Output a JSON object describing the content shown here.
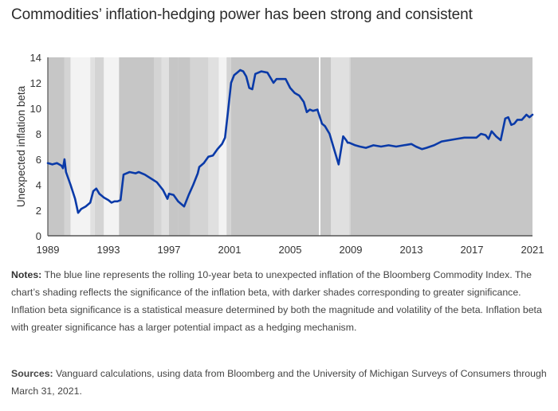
{
  "title": "Commodities’ inflation-hedging power has been strong and consistent",
  "notes_label": "Notes:",
  "notes_text": " The blue line represents the rolling 10-year beta to unexpected inflation of the Bloomberg Commodity Index. The chart’s shading reflects the significance of the inflation beta, with darker shades corresponding to greater significance. Inflation beta significance is a statistical measure determined by both the magnitude and volatility of the beta. Inflation beta with greater significance has a larger potential impact as a hedging mechanism.",
  "sources_label": "Sources:",
  "sources_text": " Vanguard calculations, using data from Bloomberg and the University of Michigan Surveys of Consumers through March 31, 2021.",
  "colors": {
    "line": "#0a3aa8",
    "shade_dark": "#c6c6c6",
    "shade_mid": "#d4d4d4",
    "shade_light": "#e0e0e0",
    "shade_lightest": "#f3f3f3",
    "axis": "#555555"
  },
  "chart_data": {
    "type": "line",
    "title": "Commodities’ inflation-hedging power has been strong and consistent",
    "xlabel": "",
    "ylabel": "Unexpected inflation beta",
    "xlim": [
      1989,
      2021
    ],
    "ylim": [
      0,
      14
    ],
    "x_ticks": [
      "1989",
      "1993",
      "1997",
      "2001",
      "2005",
      "2009",
      "2013",
      "2017",
      "2021"
    ],
    "y_ticks": [
      "0",
      "2",
      "4",
      "6",
      "8",
      "10",
      "12",
      "14"
    ],
    "grid": false,
    "legend": "none",
    "series": [
      {
        "name": "Rolling 10-year inflation beta (Bloomberg Commodity Index)",
        "x": [
          1989.0,
          1989.3,
          1989.6,
          1989.9,
          1990.0,
          1990.1,
          1990.2,
          1990.5,
          1990.8,
          1991.0,
          1991.2,
          1991.5,
          1991.8,
          1992.0,
          1992.2,
          1992.4,
          1992.7,
          1993.0,
          1993.2,
          1993.4,
          1993.6,
          1993.8,
          1994.0,
          1994.4,
          1994.8,
          1995.0,
          1995.4,
          1995.8,
          1996.2,
          1996.6,
          1996.9,
          1997.0,
          1997.3,
          1997.6,
          1997.9,
          1998.0,
          1998.3,
          1998.6,
          1998.9,
          1999.0,
          1999.3,
          1999.6,
          1999.9,
          2000.2,
          2000.5,
          2000.7,
          2000.9,
          2001.1,
          2001.3,
          2001.5,
          2001.7,
          2001.9,
          2002.1,
          2002.3,
          2002.5,
          2002.7,
          2002.9,
          2003.1,
          2003.5,
          2003.9,
          2004.1,
          2004.4,
          2004.7,
          2005.0,
          2005.3,
          2005.6,
          2005.9,
          2006.1,
          2006.3,
          2006.5,
          2006.8,
          2007.1,
          2007.3,
          2007.6,
          2007.9,
          2008.2,
          2008.5,
          2008.7,
          2008.8,
          2008.9,
          2009.1,
          2009.3,
          2009.6,
          2010.0,
          2010.5,
          2011.0,
          2011.5,
          2012.0,
          2012.5,
          2013.0,
          2013.3,
          2013.7,
          2014.0,
          2014.5,
          2015.0,
          2015.5,
          2016.0,
          2016.5,
          2017.0,
          2017.3,
          2017.6,
          2017.9,
          2018.1,
          2018.3,
          2018.6,
          2018.9,
          2019.2,
          2019.4,
          2019.6,
          2019.8,
          2020.0,
          2020.3,
          2020.6,
          2020.8,
          2021.0
        ],
        "y": [
          5.7,
          5.6,
          5.7,
          5.5,
          5.3,
          6.0,
          5.0,
          4.0,
          2.9,
          1.8,
          2.1,
          2.3,
          2.6,
          3.5,
          3.7,
          3.3,
          3.0,
          2.8,
          2.6,
          2.7,
          2.7,
          2.8,
          4.8,
          5.0,
          4.9,
          5.0,
          4.8,
          4.5,
          4.2,
          3.6,
          2.9,
          3.3,
          3.2,
          2.7,
          2.4,
          2.3,
          3.2,
          4.0,
          4.9,
          5.4,
          5.7,
          6.2,
          6.3,
          6.8,
          7.2,
          7.7,
          9.8,
          12.0,
          12.6,
          12.8,
          13.0,
          12.9,
          12.5,
          11.6,
          11.5,
          12.7,
          12.8,
          12.9,
          12.8,
          12.0,
          12.3,
          12.3,
          12.3,
          11.6,
          11.2,
          11.0,
          10.5,
          9.7,
          9.9,
          9.8,
          9.9,
          8.8,
          8.6,
          8.0,
          6.8,
          5.6,
          7.8,
          7.5,
          7.3,
          7.3,
          7.2,
          7.1,
          7.0,
          6.9,
          7.1,
          7.0,
          7.1,
          7.0,
          7.1,
          7.2,
          7.0,
          6.8,
          6.9,
          7.1,
          7.4,
          7.5,
          7.6,
          7.7,
          7.7,
          7.7,
          8.0,
          7.9,
          7.6,
          8.2,
          7.8,
          7.5,
          9.2,
          9.3,
          8.7,
          8.8,
          9.1,
          9.1,
          9.5,
          9.3,
          9.5
        ]
      }
    ],
    "shading_bands": [
      {
        "start": 1989.0,
        "end": 1990.1,
        "shade": "dark"
      },
      {
        "start": 1990.1,
        "end": 1990.5,
        "shade": "mid"
      },
      {
        "start": 1990.5,
        "end": 1991.8,
        "shade": "lightest"
      },
      {
        "start": 1991.8,
        "end": 1992.1,
        "shade": "light"
      },
      {
        "start": 1992.1,
        "end": 1992.7,
        "shade": "mid"
      },
      {
        "start": 1992.7,
        "end": 1993.7,
        "shade": "lightest"
      },
      {
        "start": 1993.7,
        "end": 1996.0,
        "shade": "dark"
      },
      {
        "start": 1996.0,
        "end": 1996.5,
        "shade": "mid"
      },
      {
        "start": 1996.5,
        "end": 1997.0,
        "shade": "light"
      },
      {
        "start": 1997.0,
        "end": 1997.6,
        "shade": "dark"
      },
      {
        "start": 1997.6,
        "end": 1998.4,
        "shade": "dark"
      },
      {
        "start": 1998.4,
        "end": 1999.6,
        "shade": "mid"
      },
      {
        "start": 1999.6,
        "end": 2000.3,
        "shade": "light"
      },
      {
        "start": 2000.3,
        "end": 2000.8,
        "shade": "lightest"
      },
      {
        "start": 2000.8,
        "end": 2001.1,
        "shade": "mid"
      },
      {
        "start": 2001.1,
        "end": 2006.9,
        "shade": "dark"
      },
      {
        "start": 2006.9,
        "end": 2007.0,
        "shade": "white"
      },
      {
        "start": 2007.0,
        "end": 2007.7,
        "shade": "dark"
      },
      {
        "start": 2007.7,
        "end": 2008.9,
        "shade": "light"
      },
      {
        "start": 2008.9,
        "end": 2009.0,
        "shade": "mid"
      },
      {
        "start": 2009.0,
        "end": 2021.0,
        "shade": "dark"
      }
    ]
  }
}
